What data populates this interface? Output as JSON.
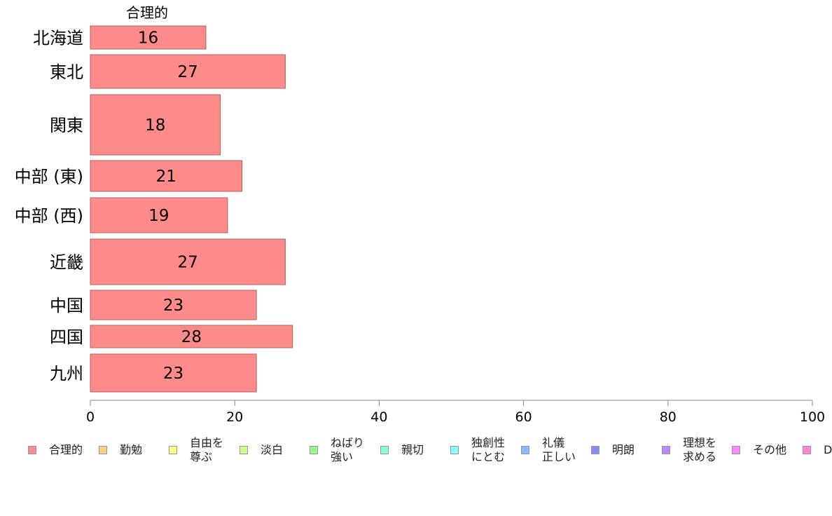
{
  "chart_data": {
    "type": "bar",
    "orientation": "horizontal",
    "title": "合理的",
    "categories": [
      "北海道",
      "東北",
      "関東",
      "中部 (東)",
      "中部 (西)",
      "近畿",
      "中国",
      "四国",
      "九州"
    ],
    "series": [
      {
        "name": "合理的",
        "values": [
          16,
          27,
          18,
          21,
          19,
          27,
          23,
          28,
          23
        ],
        "color": "#ff8a8a"
      }
    ],
    "xlim": [
      0,
      100
    ],
    "xticks": [
      0,
      20,
      40,
      60,
      80,
      100
    ],
    "grid": false,
    "legend_position": "bottom"
  },
  "legend": [
    {
      "label": "合理的",
      "color": "#ff8a8a"
    },
    {
      "label": "勤勉",
      "color": "#ffcc88"
    },
    {
      "label": "自由を\n尊ぶ",
      "color": "#ffff88"
    },
    {
      "label": "淡白",
      "color": "#ccff88"
    },
    {
      "label": "ねばり\n強い",
      "color": "#88ff88"
    },
    {
      "label": "親切",
      "color": "#88ffcc"
    },
    {
      "label": "独創性\nにとむ",
      "color": "#88ffff"
    },
    {
      "label": "礼儀\n正しい",
      "color": "#88bbff"
    },
    {
      "label": "明朗",
      "color": "#8888ff"
    },
    {
      "label": "理想を\n求める",
      "color": "#bb88ff"
    },
    {
      "label": "その他",
      "color": "#ff88ff"
    },
    {
      "label": "D",
      "color": "#ff88cc"
    }
  ],
  "colors": {
    "bar_border": "#b06060",
    "axis": "#888888"
  }
}
